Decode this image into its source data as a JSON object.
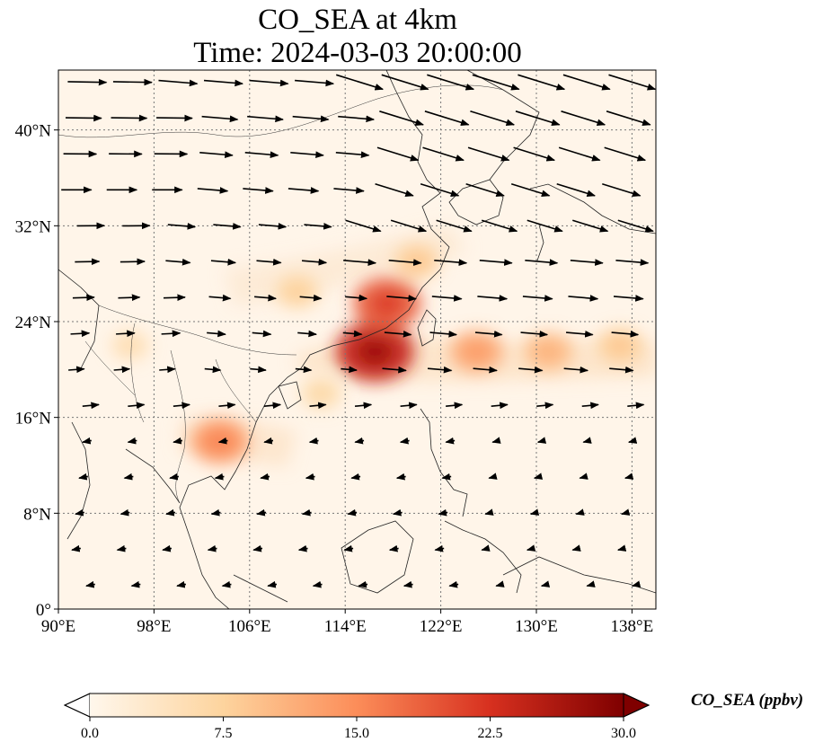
{
  "title": {
    "line1": "CO_SEA at 4km",
    "line2": "Time: 2024-03-03 20:00:00"
  },
  "axes": {
    "x_ticks": [
      "90°E",
      "98°E",
      "106°E",
      "114°E",
      "122°E",
      "130°E",
      "138°E"
    ],
    "y_ticks": [
      "40°N",
      "32°N",
      "24°N",
      "16°N",
      "8°N",
      "0°"
    ],
    "x_tick_values": [
      90,
      98,
      106,
      114,
      122,
      130,
      138
    ],
    "y_tick_values": [
      40,
      32,
      24,
      16,
      8,
      0
    ],
    "lon_range": [
      90,
      140
    ],
    "lat_range": [
      0,
      45
    ],
    "gridlines": "dotted"
  },
  "colorbar": {
    "label": "CO_SEA (ppbv)",
    "ticks": [
      "0.0",
      "7.5",
      "15.0",
      "22.5",
      "30.0"
    ],
    "tick_values": [
      0,
      7.5,
      15,
      22.5,
      30
    ],
    "range": [
      0,
      30
    ],
    "extend": "both",
    "colormap": "OrRd",
    "colors": [
      "#fff7ec",
      "#fdd49e",
      "#fc8d59",
      "#d7301f",
      "#7f0000"
    ]
  },
  "field": {
    "plumes": [
      {
        "lon": 116.5,
        "lat": 21.5,
        "value": 24
      },
      {
        "lon": 117.5,
        "lat": 25.5,
        "value": 19
      },
      {
        "lon": 125,
        "lat": 21.5,
        "value": 12
      },
      {
        "lon": 131,
        "lat": 21.5,
        "value": 10
      },
      {
        "lon": 137,
        "lat": 22,
        "value": 8
      },
      {
        "lon": 120,
        "lat": 29,
        "value": 8
      },
      {
        "lon": 103.5,
        "lat": 14,
        "value": 14
      },
      {
        "lon": 110,
        "lat": 26.5,
        "value": 7
      },
      {
        "lon": 112,
        "lat": 18,
        "value": 6
      },
      {
        "lon": 96,
        "lat": 22,
        "value": 5
      }
    ]
  },
  "wind_vectors": "regular lon/lat grid; strong westerlies north of 20°N, weaker easterlies south of 16°N"
}
